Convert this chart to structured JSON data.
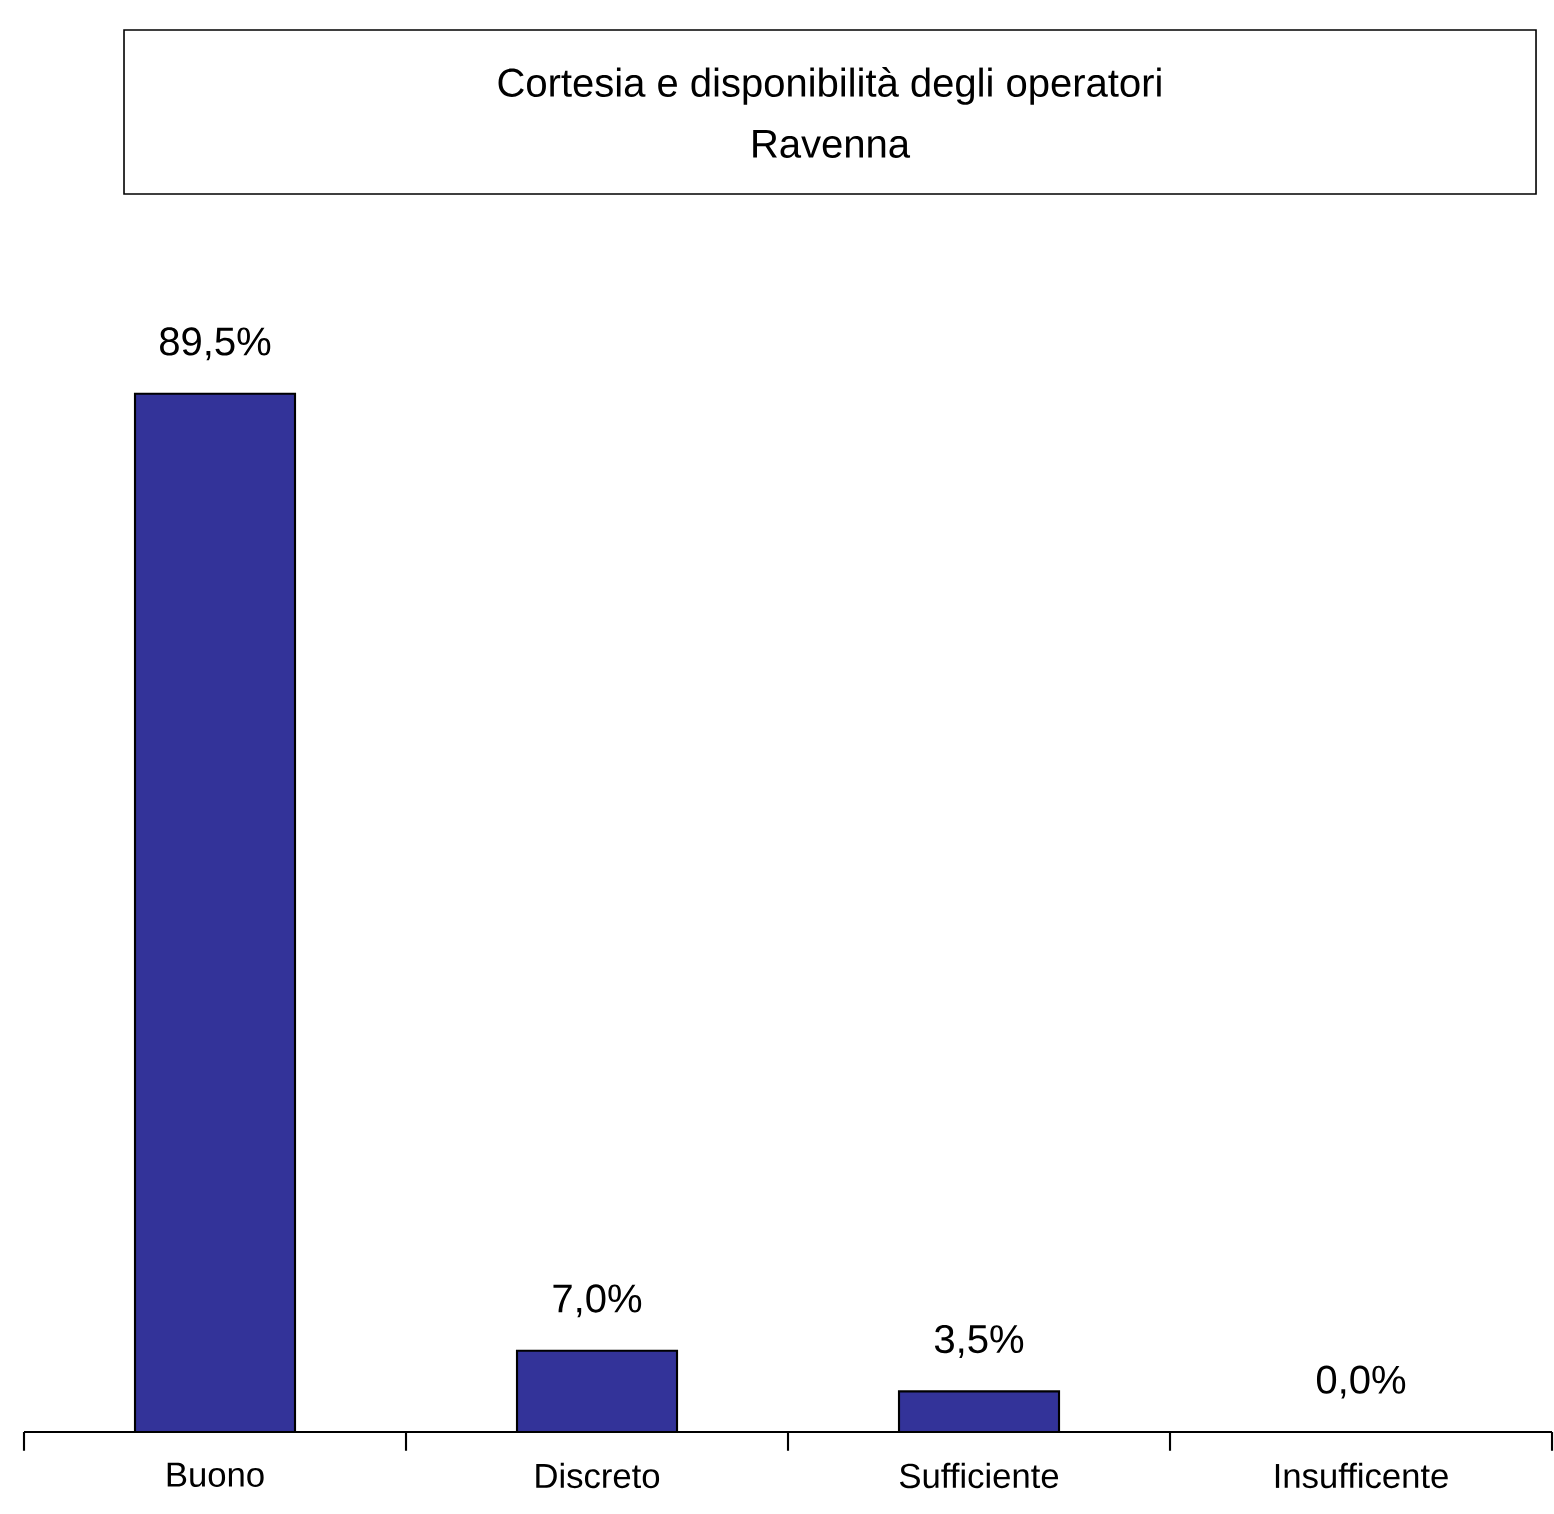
{
  "chart_data": {
    "type": "bar",
    "title": "Cortesia e disponibilità degli operatori",
    "subtitle": "Ravenna",
    "categories": [
      "Buono",
      "Discreto",
      "Sufficiente",
      "Insufficente"
    ],
    "values": [
      89.5,
      7.0,
      3.5,
      0.0
    ],
    "value_labels": [
      "89,5%",
      "7,0%",
      "3,5%",
      "0,0%"
    ],
    "color": "#333399"
  }
}
